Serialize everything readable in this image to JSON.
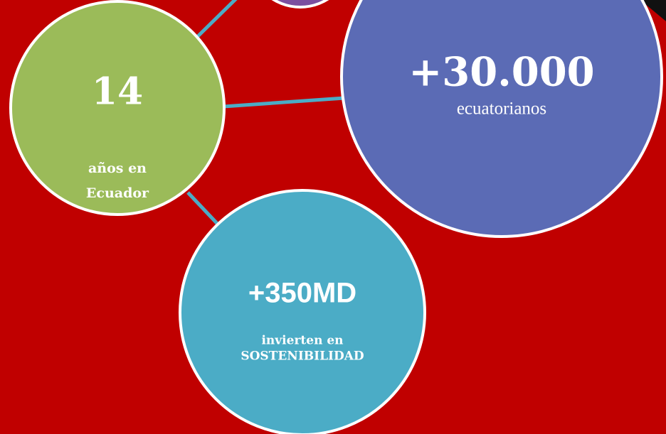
{
  "nodes": [
    {
      "value": "14",
      "lines": [
        "años en",
        "Ecuador"
      ]
    },
    {
      "value": "+30.000",
      "lines": [
        "ecuatorianos"
      ]
    },
    {
      "value": "+350MD",
      "lines": [
        "invierten en",
        "SOSTENIBILIDAD"
      ]
    }
  ]
}
